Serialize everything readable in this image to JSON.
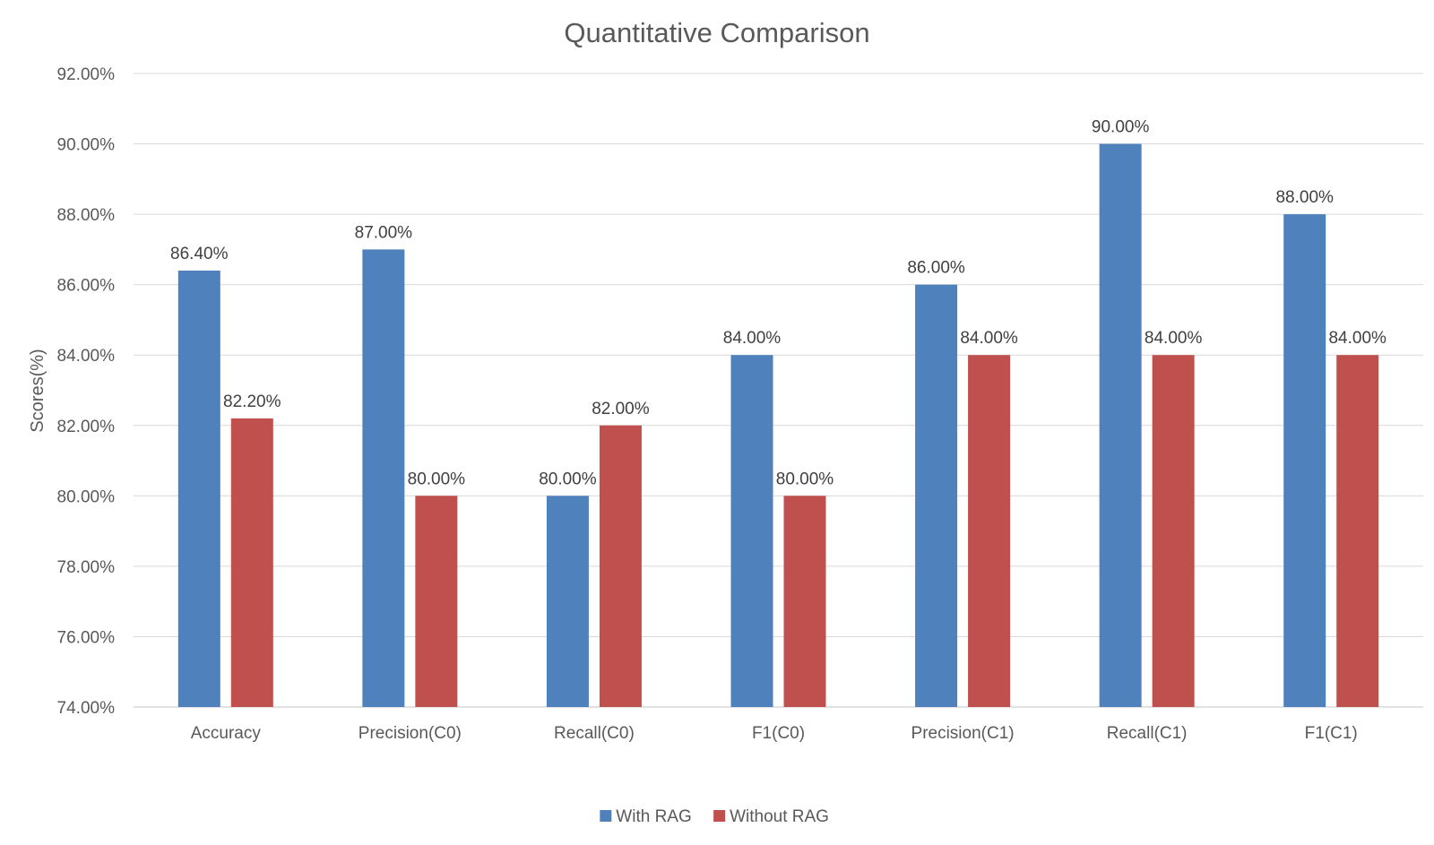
{
  "chart_data": {
    "type": "bar",
    "title": "Quantitative Comparison",
    "xlabel": "",
    "ylabel": "Scores(%)",
    "ylim": [
      74,
      92
    ],
    "yticks": [
      74,
      76,
      78,
      80,
      82,
      84,
      86,
      88,
      90,
      92
    ],
    "ytick_labels": [
      "74.00%",
      "76.00%",
      "78.00%",
      "80.00%",
      "82.00%",
      "84.00%",
      "86.00%",
      "88.00%",
      "90.00%",
      "92.00%"
    ],
    "grid": true,
    "legend_position": "bottom",
    "categories": [
      "Accuracy",
      "Precision(C0)",
      "Recall(C0)",
      "F1(C0)",
      "Precision(C1)",
      "Recall(C1)",
      "F1(C1)"
    ],
    "series": [
      {
        "name": "With RAG",
        "color": "#4f81bd",
        "values": [
          86.4,
          87.0,
          80.0,
          84.0,
          86.0,
          90.0,
          88.0
        ],
        "labels": [
          "86.40%",
          "87.00%",
          "80.00%",
          "84.00%",
          "86.00%",
          "90.00%",
          "88.00%"
        ]
      },
      {
        "name": "Without RAG",
        "color": "#c0504d",
        "values": [
          82.2,
          80.0,
          82.0,
          80.0,
          84.0,
          84.0,
          84.0
        ],
        "labels": [
          "82.20%",
          "80.00%",
          "82.00%",
          "80.00%",
          "84.00%",
          "84.00%",
          "84.00%"
        ]
      }
    ]
  }
}
